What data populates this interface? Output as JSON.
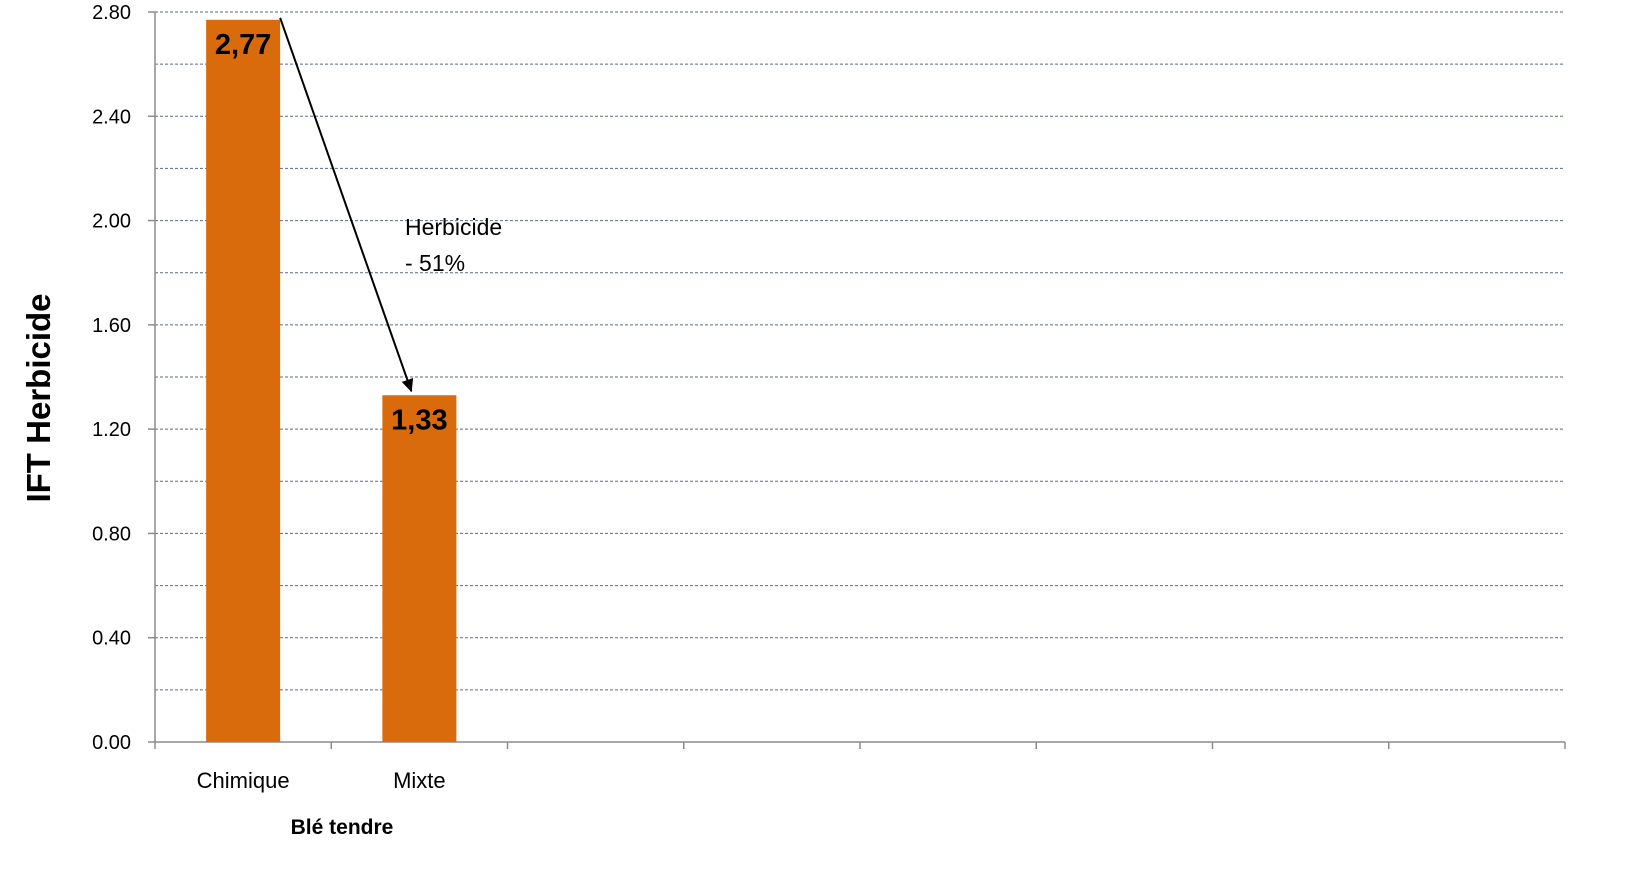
{
  "chart_data": {
    "type": "bar",
    "categories": [
      "Chimique",
      "Mixte"
    ],
    "values": [
      2.77,
      1.33
    ],
    "value_labels": [
      "2,77",
      "1,33"
    ],
    "group_label": "Blé tendre",
    "ylabel": "IFT Herbicide",
    "ylim": [
      0,
      2.8
    ],
    "yticks": [
      0.0,
      0.4,
      0.8,
      1.2,
      1.6,
      2.0,
      2.4,
      2.8
    ],
    "ytick_labels": [
      "0.00",
      "0.40",
      "0.80",
      "1.20",
      "1.60",
      "2.00",
      "2.40",
      "2.80"
    ],
    "minor_gridlines": true,
    "grid": true,
    "grid_style": "dashed",
    "bar_color": "#D96B0C",
    "x_slots": 8,
    "annotation": {
      "line1": "Herbicide",
      "line2": "- 51%",
      "type": "arrow",
      "from": "Chimique",
      "to": "Mixte"
    }
  }
}
